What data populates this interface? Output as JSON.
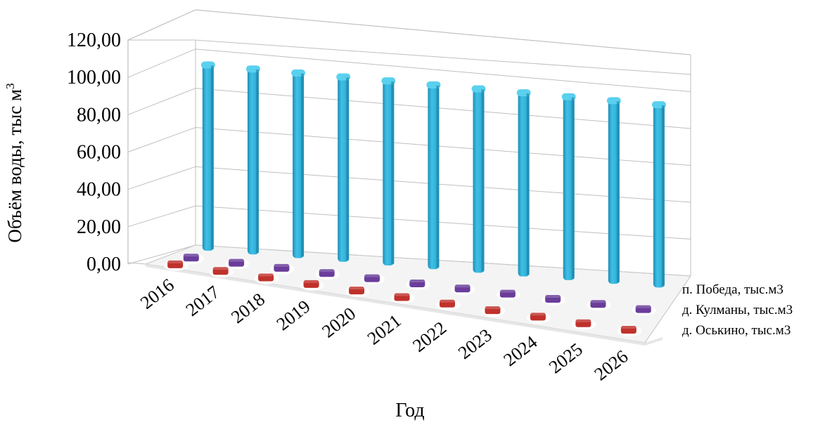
{
  "chart_data": {
    "type": "bar",
    "subtype": "3d-column",
    "title": "",
    "xlabel": "Год",
    "ylabel": "Объём воды, тыс м³",
    "ylim": [
      0,
      120
    ],
    "y_ticks": [
      "0,00",
      "20,00",
      "40,00",
      "60,00",
      "80,00",
      "100,00",
      "120,00"
    ],
    "categories": [
      "2016",
      "2017",
      "2018",
      "2019",
      "2020",
      "2021",
      "2022",
      "2023",
      "2024",
      "2025",
      "2026"
    ],
    "grid": true,
    "series": [
      {
        "name": "п. Победа, тыс.м3",
        "color": "#35b2d8",
        "values": [
          110,
          110,
          110,
          110,
          110,
          110,
          110,
          110,
          110,
          110,
          110
        ]
      },
      {
        "name": "д. Кулманы, тыс.м3",
        "color": "#6a3d9a",
        "values": [
          0.5,
          0.5,
          0.5,
          0.5,
          0.5,
          0.5,
          0.5,
          0.5,
          0.5,
          0.5,
          0.5
        ]
      },
      {
        "name": "д. Оськино, тыс.м3",
        "color": "#c0312b",
        "values": [
          0.5,
          0.5,
          0.5,
          0.5,
          0.5,
          0.5,
          0.5,
          0.5,
          0.5,
          0.5,
          0.5
        ]
      }
    ]
  }
}
